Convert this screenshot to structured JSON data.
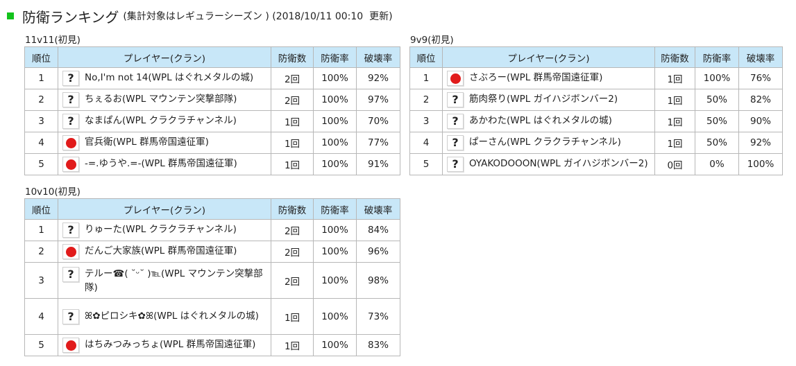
{
  "header": {
    "title": "防衛ランキング",
    "subtitle": "(集計対象はレギュラーシーズン ) (2018/10/11 00:10  更新)"
  },
  "columns": {
    "rank": "順位",
    "player": "プレイヤー(クラン)",
    "defense_count": "防衛数",
    "defense_rate": "防衛率",
    "destruction_rate": "破壊率"
  },
  "sections": {
    "s11v11": {
      "label": "11v11(初見)",
      "rows": [
        {
          "rank": "1",
          "icon": "question-icon",
          "player": "No,I'm not 14(WPL はぐれメタルの城)",
          "defense_count": "2回",
          "defense_rate": "100%",
          "destruction_rate": "92%"
        },
        {
          "rank": "2",
          "icon": "question-icon",
          "player": "ちぇるお(WPL マウンテン突撃部隊)",
          "defense_count": "2回",
          "defense_rate": "100%",
          "destruction_rate": "97%"
        },
        {
          "rank": "3",
          "icon": "question-icon",
          "player": "なまぱん(WPL クラクラチャンネル)",
          "defense_count": "1回",
          "defense_rate": "100%",
          "destruction_rate": "70%"
        },
        {
          "rank": "4",
          "icon": "japan-flag-icon",
          "player": "官兵衛(WPL 群馬帝国遠征軍)",
          "defense_count": "1回",
          "defense_rate": "100%",
          "destruction_rate": "77%"
        },
        {
          "rank": "5",
          "icon": "japan-flag-icon",
          "player": "-=.ゆうや.=-(WPL 群馬帝国遠征軍)",
          "defense_count": "1回",
          "defense_rate": "100%",
          "destruction_rate": "91%"
        }
      ]
    },
    "s9v9": {
      "label": "9v9(初見)",
      "rows": [
        {
          "rank": "1",
          "icon": "japan-flag-icon",
          "player": "さぶろー(WPL 群馬帝国遠征軍)",
          "defense_count": "1回",
          "defense_rate": "100%",
          "destruction_rate": "76%"
        },
        {
          "rank": "2",
          "icon": "question-icon",
          "player": "筋肉祭り(WPL ガイハジボンバー2)",
          "defense_count": "1回",
          "defense_rate": "50%",
          "destruction_rate": "82%"
        },
        {
          "rank": "3",
          "icon": "question-icon",
          "player": "あかわた(WPL はぐれメタルの城)",
          "defense_count": "1回",
          "defense_rate": "50%",
          "destruction_rate": "90%"
        },
        {
          "rank": "4",
          "icon": "question-icon",
          "player": "ぱーさん(WPL クラクラチャンネル)",
          "defense_count": "1回",
          "defense_rate": "50%",
          "destruction_rate": "92%"
        },
        {
          "rank": "5",
          "icon": "question-icon",
          "player": "OYAKODOOON(WPL ガイハジボンバー2)",
          "defense_count": "0回",
          "defense_rate": "0%",
          "destruction_rate": "100%"
        }
      ]
    },
    "s10v10": {
      "label": "10v10(初見)",
      "rows": [
        {
          "rank": "1",
          "icon": "question-icon",
          "player": "りゅーた(WPL クラクラチャンネル)",
          "defense_count": "2回",
          "defense_rate": "100%",
          "destruction_rate": "84%"
        },
        {
          "rank": "2",
          "icon": "japan-flag-icon",
          "player": "だんご大家族(WPL 群馬帝国遠征軍)",
          "defense_count": "2回",
          "defense_rate": "100%",
          "destruction_rate": "96%"
        },
        {
          "rank": "3",
          "icon": "question-icon",
          "player": "テルー☎( ˘ᵕ˘ )℡(WPL マウンテン突撃部隊)",
          "defense_count": "2回",
          "defense_rate": "100%",
          "destruction_rate": "98%"
        },
        {
          "rank": "4",
          "icon": "question-icon",
          "player": "ꕤ✿ピロシキ✿ꕤ(WPL はぐれメタルの城)",
          "defense_count": "1回",
          "defense_rate": "100%",
          "destruction_rate": "73%"
        },
        {
          "rank": "5",
          "icon": "japan-flag-icon",
          "player": "はちみつみっちょ(WPL 群馬帝国遠征軍)",
          "defense_count": "1回",
          "defense_rate": "100%",
          "destruction_rate": "83%"
        }
      ]
    }
  }
}
